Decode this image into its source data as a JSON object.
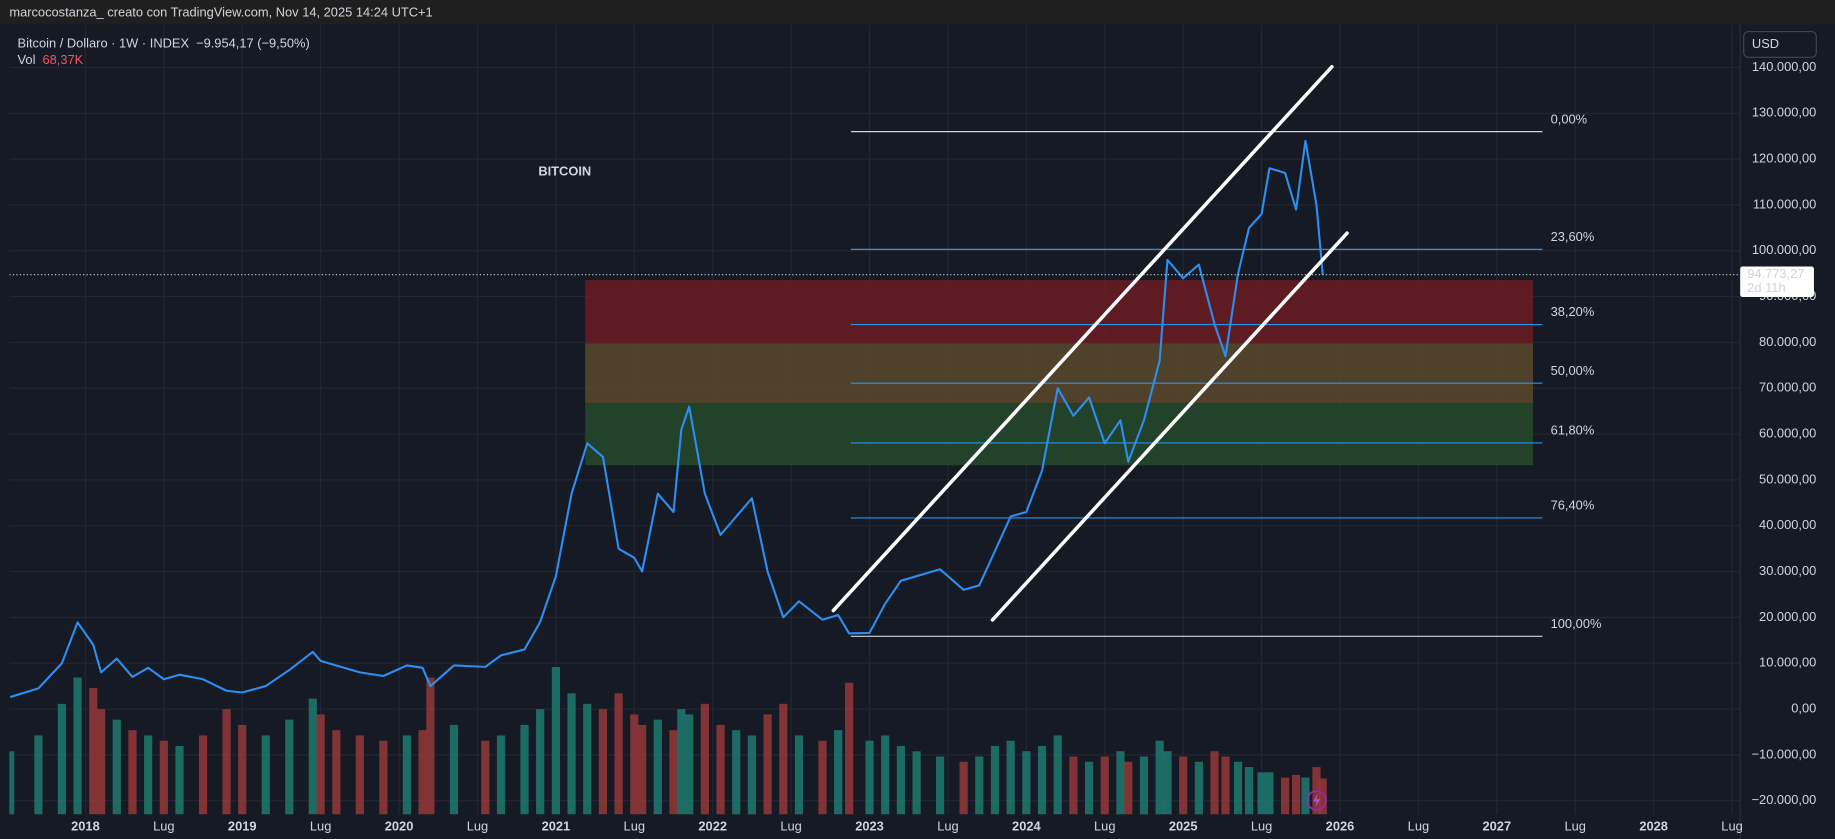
{
  "header": "marcocostanza_ creato con TradingView.com, Nov 14, 2025 14:24 UTC+1",
  "chart_data": {
    "type": "line",
    "title": "Bitcoin / Dollaro · 1W · INDEX",
    "change": "−9.954,17 (−9,50%)",
    "annotation": "BITCOIN",
    "currency": "USD",
    "grid": true,
    "x": [
      2017.52,
      2017.7,
      2017.85,
      2017.95,
      2018.05,
      2018.1,
      2018.2,
      2018.3,
      2018.4,
      2018.5,
      2018.6,
      2018.75,
      2018.9,
      2019.0,
      2019.15,
      2019.3,
      2019.45,
      2019.5,
      2019.6,
      2019.75,
      2019.9,
      2020.05,
      2020.15,
      2020.2,
      2020.35,
      2020.55,
      2020.65,
      2020.8,
      2020.9,
      2021.0,
      2021.1,
      2021.2,
      2021.3,
      2021.4,
      2021.5,
      2021.55,
      2021.65,
      2021.75,
      2021.8,
      2021.85,
      2021.95,
      2022.05,
      2022.15,
      2022.25,
      2022.35,
      2022.45,
      2022.55,
      2022.7,
      2022.8,
      2022.87,
      2023.0,
      2023.1,
      2023.2,
      2023.3,
      2023.45,
      2023.6,
      2023.7,
      2023.8,
      2023.9,
      2024.0,
      2024.1,
      2024.2,
      2024.3,
      2024.4,
      2024.5,
      2024.6,
      2024.65,
      2024.75,
      2024.85,
      2024.9,
      2025.0,
      2025.1,
      2025.2,
      2025.27,
      2025.35,
      2025.42,
      2025.5,
      2025.55,
      2025.65,
      2025.72,
      2025.78,
      2025.85,
      2025.89
    ],
    "series": [
      {
        "color": "#2e8ef0",
        "values": [
          2600,
          4500,
          10000,
          18900,
          14000,
          8000,
          11000,
          7000,
          9000,
          6500,
          7500,
          6500,
          4000,
          3600,
          5000,
          8500,
          12500,
          10500,
          9500,
          8000,
          7200,
          9500,
          9000,
          5000,
          9500,
          9200,
          11700,
          13000,
          19000,
          29000,
          47000,
          58000,
          55000,
          35000,
          33000,
          30000,
          47000,
          43000,
          61000,
          66000,
          47000,
          38000,
          42000,
          46000,
          30000,
          20000,
          23500,
          19500,
          20500,
          16500,
          16600,
          23000,
          28000,
          29000,
          30500,
          26000,
          27000,
          34500,
          42000,
          43000,
          52000,
          70000,
          64000,
          68000,
          58000,
          63000,
          54000,
          63000,
          76000,
          98000,
          94000,
          97000,
          84000,
          77000,
          95000,
          105000,
          108000,
          118000,
          117000,
          109000,
          124000,
          110000,
          94773
        ]
      }
    ],
    "volume": {
      "name": "Vol",
      "last": "68,37K",
      "up_color": "#1f7f76",
      "down_color": "#9c3a3a",
      "values": [
        120,
        150,
        210,
        260,
        240,
        200,
        180,
        160,
        150,
        140,
        130,
        150,
        200,
        170,
        150,
        180,
        220,
        190,
        160,
        150,
        140,
        150,
        160,
        260,
        170,
        140,
        150,
        170,
        200,
        280,
        230,
        210,
        200,
        230,
        190,
        170,
        180,
        160,
        200,
        190,
        210,
        170,
        160,
        150,
        190,
        210,
        150,
        140,
        160,
        250,
        140,
        150,
        130,
        120,
        110,
        100,
        110,
        130,
        140,
        120,
        130,
        150,
        110,
        100,
        110,
        120,
        100,
        110,
        140,
        120,
        110,
        100,
        120,
        110,
        100,
        90,
        80,
        80,
        70,
        75,
        70,
        90,
        68.37
      ]
    },
    "xlim": [
      2017.515,
      2028.552
    ],
    "ylim": [
      -23000,
      149360
    ],
    "xticks": [
      2018,
      {
        "value": 2018.5,
        "label": "Lug"
      },
      2019,
      {
        "value": 2019.5,
        "label": "Lug"
      },
      2020,
      {
        "value": 2020.5,
        "label": "Lug"
      },
      2021,
      {
        "value": 2021.5,
        "label": "Lug"
      },
      2022,
      {
        "value": 2022.5,
        "label": "Lug"
      },
      2023,
      {
        "value": 2023.5,
        "label": "Lug"
      },
      2024,
      {
        "value": 2024.5,
        "label": "Lug"
      },
      2025,
      {
        "value": 2025.5,
        "label": "Lug"
      },
      2026,
      {
        "value": 2026.5,
        "label": "Lug"
      },
      2027,
      {
        "value": 2027.5,
        "label": "Lug"
      },
      2028,
      {
        "value": 2028.5,
        "label": "Lug"
      }
    ],
    "yticks": [
      {
        "value": 140000,
        "label": "140.000,00"
      },
      {
        "value": 130000,
        "label": "130.000,00"
      },
      {
        "value": 120000,
        "label": "120.000,00"
      },
      {
        "value": 110000,
        "label": "110.000,00"
      },
      {
        "value": 100000,
        "label": "100.000,00"
      },
      {
        "value": 90000,
        "label": "90.000,00"
      },
      {
        "value": 80000,
        "label": "80.000,00"
      },
      {
        "value": 70000,
        "label": "70.000,00"
      },
      {
        "value": 60000,
        "label": "60.000,00"
      },
      {
        "value": 50000,
        "label": "50.000,00"
      },
      {
        "value": 40000,
        "label": "40.000,00"
      },
      {
        "value": 30000,
        "label": "30.000,00"
      },
      {
        "value": 20000,
        "label": "20.000,00"
      },
      {
        "value": 10000,
        "label": "10.000,00"
      },
      {
        "value": 0,
        "label": "0,00"
      },
      {
        "value": -10000,
        "label": "−10.000,00"
      },
      {
        "value": -20000,
        "label": "−20.000,00"
      }
    ],
    "last_price": {
      "value": 94773.27,
      "label": "94.773,27",
      "countdown": "2d 11h"
    },
    "fib": {
      "x": [
        2022.881,
        2027.291
      ],
      "levels": [
        {
          "label": "0,00%",
          "value": 126000,
          "color": "#d1d4dc"
        },
        {
          "label": "23,60%",
          "value": 100300,
          "color": "#2196f3"
        },
        {
          "label": "38,20%",
          "value": 83900,
          "color": "#2196f3"
        },
        {
          "label": "50,00%",
          "value": 71100,
          "color": "#2196f3"
        },
        {
          "label": "61,80%",
          "value": 58060,
          "color": "#2196f3"
        },
        {
          "label": "76,40%",
          "value": 41700,
          "color": "#2196f3"
        },
        {
          "label": "100,00%",
          "value": 15860,
          "color": "#d1d4dc"
        }
      ]
    },
    "zones": {
      "x": [
        2021.187,
        2027.231
      ],
      "bands": [
        {
          "range": [
            79800,
            93600
          ],
          "color": "#6b1c22"
        },
        {
          "range": [
            66750,
            79800
          ],
          "color": "#5a4a2c"
        },
        {
          "range": [
            53200,
            66750
          ],
          "color": "#244a2a"
        }
      ]
    },
    "channel": [
      {
        "x": [
          2022.769,
          2025.948
        ],
        "y": [
          21480,
          140150
        ]
      },
      {
        "x": [
          2023.784,
          2026.045
        ],
        "y": [
          19440,
          103840
        ]
      }
    ]
  }
}
